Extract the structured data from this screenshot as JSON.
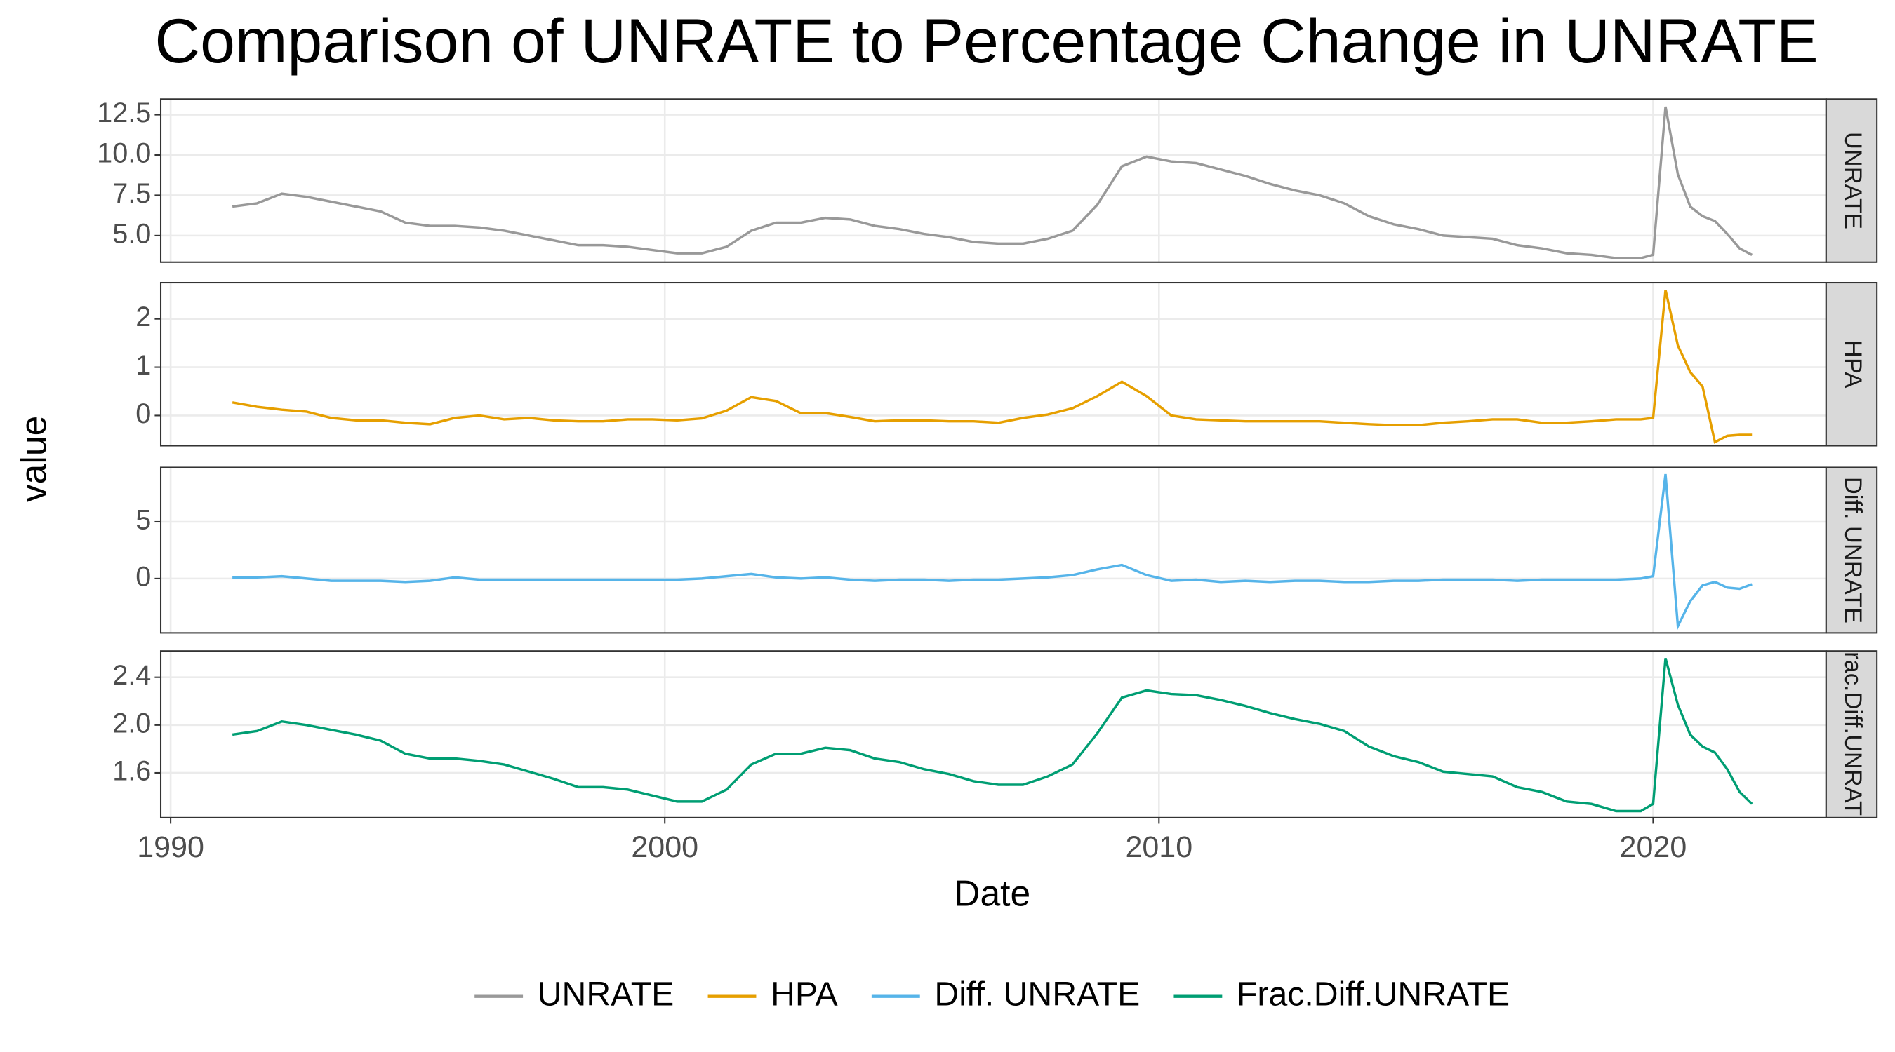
{
  "title": "Comparison of UNRATE to Percentage Change in UNRATE",
  "x_label": "Date",
  "y_label": "value",
  "xlim": [
    1989.8,
    2023.5
  ],
  "xticks": [
    1990,
    2000,
    2010,
    2020
  ],
  "x": [
    1991.25,
    1991.75,
    1992.25,
    1992.75,
    1993.25,
    1993.75,
    1994.25,
    1994.75,
    1995.25,
    1995.75,
    1996.25,
    1996.75,
    1997.25,
    1997.75,
    1998.25,
    1998.75,
    1999.25,
    1999.75,
    2000.25,
    2000.75,
    2001.25,
    2001.75,
    2002.25,
    2002.75,
    2003.25,
    2003.75,
    2004.25,
    2004.75,
    2005.25,
    2005.75,
    2006.25,
    2006.75,
    2007.25,
    2007.75,
    2008.25,
    2008.75,
    2009.25,
    2009.75,
    2010.25,
    2010.75,
    2011.25,
    2011.75,
    2012.25,
    2012.75,
    2013.25,
    2013.75,
    2014.25,
    2014.75,
    2015.25,
    2015.75,
    2016.25,
    2016.75,
    2017.25,
    2017.75,
    2018.25,
    2018.75,
    2019.25,
    2019.75,
    2020.0,
    2020.25,
    2020.5,
    2020.75,
    2021.0,
    2021.25,
    2021.5,
    2021.75,
    2022.0
  ],
  "legend": "bottom",
  "chart_data": [
    {
      "type": "line",
      "ylim": [
        3.35,
        13.47
      ],
      "yticks": [
        {
          "value": 5,
          "label": "5.0"
        },
        7.5,
        {
          "value": 10,
          "label": "10.0"
        },
        12.5
      ],
      "grid": true,
      "series": [
        {
          "name": "UNRATE",
          "color": "#999999",
          "values": [
            6.8,
            7.0,
            7.6,
            7.4,
            7.1,
            6.8,
            6.5,
            5.8,
            5.6,
            5.6,
            5.5,
            5.3,
            5.0,
            4.7,
            4.4,
            4.4,
            4.3,
            4.1,
            3.9,
            3.9,
            4.3,
            5.3,
            5.8,
            5.8,
            6.1,
            6.0,
            5.6,
            5.4,
            5.1,
            4.9,
            4.6,
            4.5,
            4.5,
            4.8,
            5.3,
            6.9,
            9.3,
            9.9,
            9.6,
            9.5,
            9.1,
            8.7,
            8.2,
            7.8,
            7.5,
            7.0,
            6.2,
            5.7,
            5.4,
            5.0,
            4.9,
            4.8,
            4.4,
            4.2,
            3.9,
            3.8,
            3.6,
            3.6,
            3.8,
            13.0,
            8.8,
            6.8,
            6.2,
            5.9,
            5.1,
            4.2,
            3.8
          ]
        }
      ]
    },
    {
      "type": "line",
      "ylim": [
        -0.625,
        2.75
      ],
      "yticks": [
        0,
        1,
        2
      ],
      "grid": true,
      "series": [
        {
          "name": "HPA",
          "color": "#E69F00",
          "values": [
            0.27,
            0.18,
            0.12,
            0.08,
            -0.05,
            -0.1,
            -0.1,
            -0.15,
            -0.18,
            -0.05,
            0.0,
            -0.08,
            -0.05,
            -0.1,
            -0.12,
            -0.12,
            -0.08,
            -0.08,
            -0.1,
            -0.06,
            0.1,
            0.38,
            0.3,
            0.05,
            0.05,
            -0.03,
            -0.12,
            -0.1,
            -0.1,
            -0.12,
            -0.12,
            -0.15,
            -0.05,
            0.02,
            0.15,
            0.4,
            0.7,
            0.4,
            0.0,
            -0.08,
            -0.1,
            -0.12,
            -0.12,
            -0.12,
            -0.12,
            -0.15,
            -0.18,
            -0.2,
            -0.2,
            -0.15,
            -0.12,
            -0.08,
            -0.08,
            -0.15,
            -0.15,
            -0.12,
            -0.08,
            -0.08,
            -0.05,
            2.6,
            1.45,
            0.9,
            0.6,
            -0.55,
            -0.42,
            -0.4,
            -0.4
          ]
        }
      ]
    },
    {
      "type": "line",
      "ylim": [
        -4.79,
        9.79
      ],
      "yticks": [
        0,
        5
      ],
      "grid": true,
      "series": [
        {
          "name": "Diff. UNRATE",
          "color": "#56B4E9",
          "values": [
            0.1,
            0.1,
            0.2,
            0.0,
            -0.2,
            -0.2,
            -0.2,
            -0.3,
            -0.2,
            0.1,
            -0.1,
            -0.1,
            -0.1,
            -0.1,
            -0.1,
            -0.1,
            -0.1,
            -0.1,
            -0.1,
            0.0,
            0.2,
            0.4,
            0.1,
            0.0,
            0.1,
            -0.1,
            -0.2,
            -0.1,
            -0.1,
            -0.2,
            -0.1,
            -0.1,
            0.0,
            0.1,
            0.3,
            0.8,
            1.2,
            0.3,
            -0.2,
            -0.1,
            -0.3,
            -0.2,
            -0.3,
            -0.2,
            -0.2,
            -0.3,
            -0.3,
            -0.2,
            -0.2,
            -0.1,
            -0.1,
            -0.1,
            -0.2,
            -0.1,
            -0.1,
            -0.1,
            -0.1,
            0.0,
            0.2,
            9.2,
            -4.2,
            -2.0,
            -0.6,
            -0.3,
            -0.8,
            -0.9,
            -0.5
          ]
        }
      ]
    },
    {
      "type": "line",
      "ylim": [
        1.225,
        2.62
      ],
      "yticks": [
        1.6,
        {
          "value": 2,
          "label": "2.0"
        },
        2.4
      ],
      "grid": true,
      "series": [
        {
          "name": "Frac.Diff.UNRATE",
          "color": "#009E73",
          "values": [
            1.92,
            1.95,
            2.03,
            2.0,
            1.96,
            1.92,
            1.87,
            1.76,
            1.72,
            1.72,
            1.7,
            1.67,
            1.61,
            1.55,
            1.48,
            1.48,
            1.46,
            1.41,
            1.36,
            1.36,
            1.46,
            1.67,
            1.76,
            1.76,
            1.81,
            1.79,
            1.72,
            1.69,
            1.63,
            1.59,
            1.53,
            1.5,
            1.5,
            1.57,
            1.67,
            1.93,
            2.23,
            2.29,
            2.26,
            2.25,
            2.21,
            2.16,
            2.1,
            2.05,
            2.01,
            1.95,
            1.82,
            1.74,
            1.69,
            1.61,
            1.59,
            1.57,
            1.48,
            1.44,
            1.36,
            1.34,
            1.28,
            1.28,
            1.34,
            2.56,
            2.17,
            1.92,
            1.82,
            1.77,
            1.63,
            1.44,
            1.34
          ]
        }
      ]
    }
  ]
}
